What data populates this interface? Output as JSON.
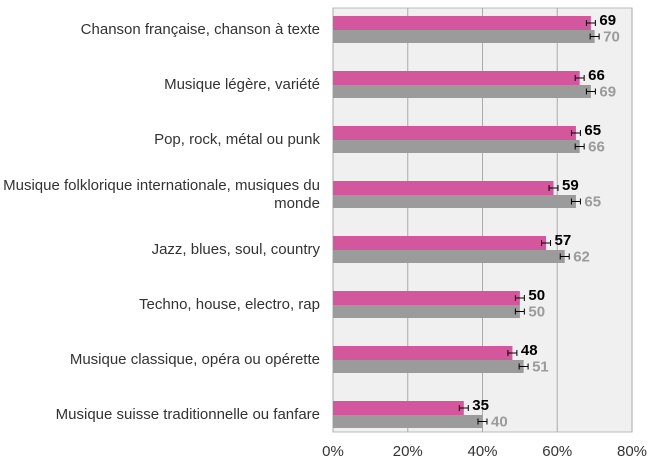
{
  "chart_data": {
    "type": "bar",
    "orientation": "horizontal",
    "categories": [
      "Chanson française, chanson à texte",
      "Musique légère, variété",
      "Pop, rock, métal ou punk",
      "Musique folklorique internationale, musiques du monde",
      "Jazz, blues, soul, country",
      "Techno, house, electro, rap",
      "Musique classique, opéra ou opérette",
      "Musique suisse traditionnelle ou fanfare"
    ],
    "series": [
      {
        "color": "#d4579d",
        "label_color": "#000000",
        "values": [
          69,
          66,
          65,
          59,
          57,
          50,
          48,
          35
        ],
        "errors": [
          1.2,
          1.2,
          1.2,
          1.2,
          1.2,
          1.2,
          1.2,
          1.2
        ]
      },
      {
        "color": "#9b9b9b",
        "label_color": "#9b9b9b",
        "values": [
          70,
          69,
          66,
          65,
          62,
          50,
          51,
          40
        ],
        "errors": [
          1.2,
          1.2,
          1.2,
          1.2,
          1.2,
          1.2,
          1.2,
          1.2
        ]
      }
    ],
    "xlim": [
      0,
      80
    ],
    "xticks": [
      {
        "value": 0,
        "label": "0%"
      },
      {
        "value": 20,
        "label": "20%"
      },
      {
        "value": 40,
        "label": "40%"
      },
      {
        "value": 60,
        "label": "60%"
      },
      {
        "value": 80,
        "label": "80%"
      }
    ],
    "grid": true
  }
}
